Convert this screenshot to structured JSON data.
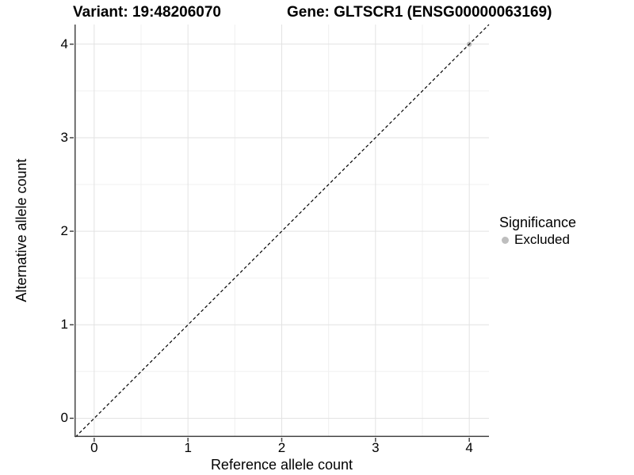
{
  "chart_data": {
    "type": "scatter",
    "titles": {
      "variant": "Variant: 19:48206070",
      "gene": "Gene: GLTSCR1 (ENSG00000063169)"
    },
    "xlabel": "Reference allele count",
    "ylabel": "Alternative allele count",
    "x_ticks": [
      0,
      1,
      2,
      3,
      4
    ],
    "y_ticks": [
      0,
      1,
      2,
      3,
      4
    ],
    "xlim": [
      -0.21,
      4.21
    ],
    "ylim": [
      -0.2,
      4.21
    ],
    "grid": {
      "major": true,
      "minor": true,
      "minor_step": 0.5
    },
    "points": [
      {
        "x": 4,
        "y": 4,
        "significance": "Excluded"
      }
    ],
    "identity_line": {
      "slope": 1,
      "intercept": 0,
      "style": "dashed"
    },
    "legend": {
      "position": "right",
      "title": "Significance",
      "items": [
        {
          "label": "Excluded",
          "color": "#bebebe"
        }
      ]
    },
    "colors": {
      "background": "#ffffff",
      "point": "#bebebe",
      "grid_major": "#e2e2e2",
      "grid_minor": "#f0f0f0",
      "axis_line": "#464646",
      "tick_mark": "#464646",
      "identity_line": "#000000",
      "text": "#000000"
    }
  }
}
